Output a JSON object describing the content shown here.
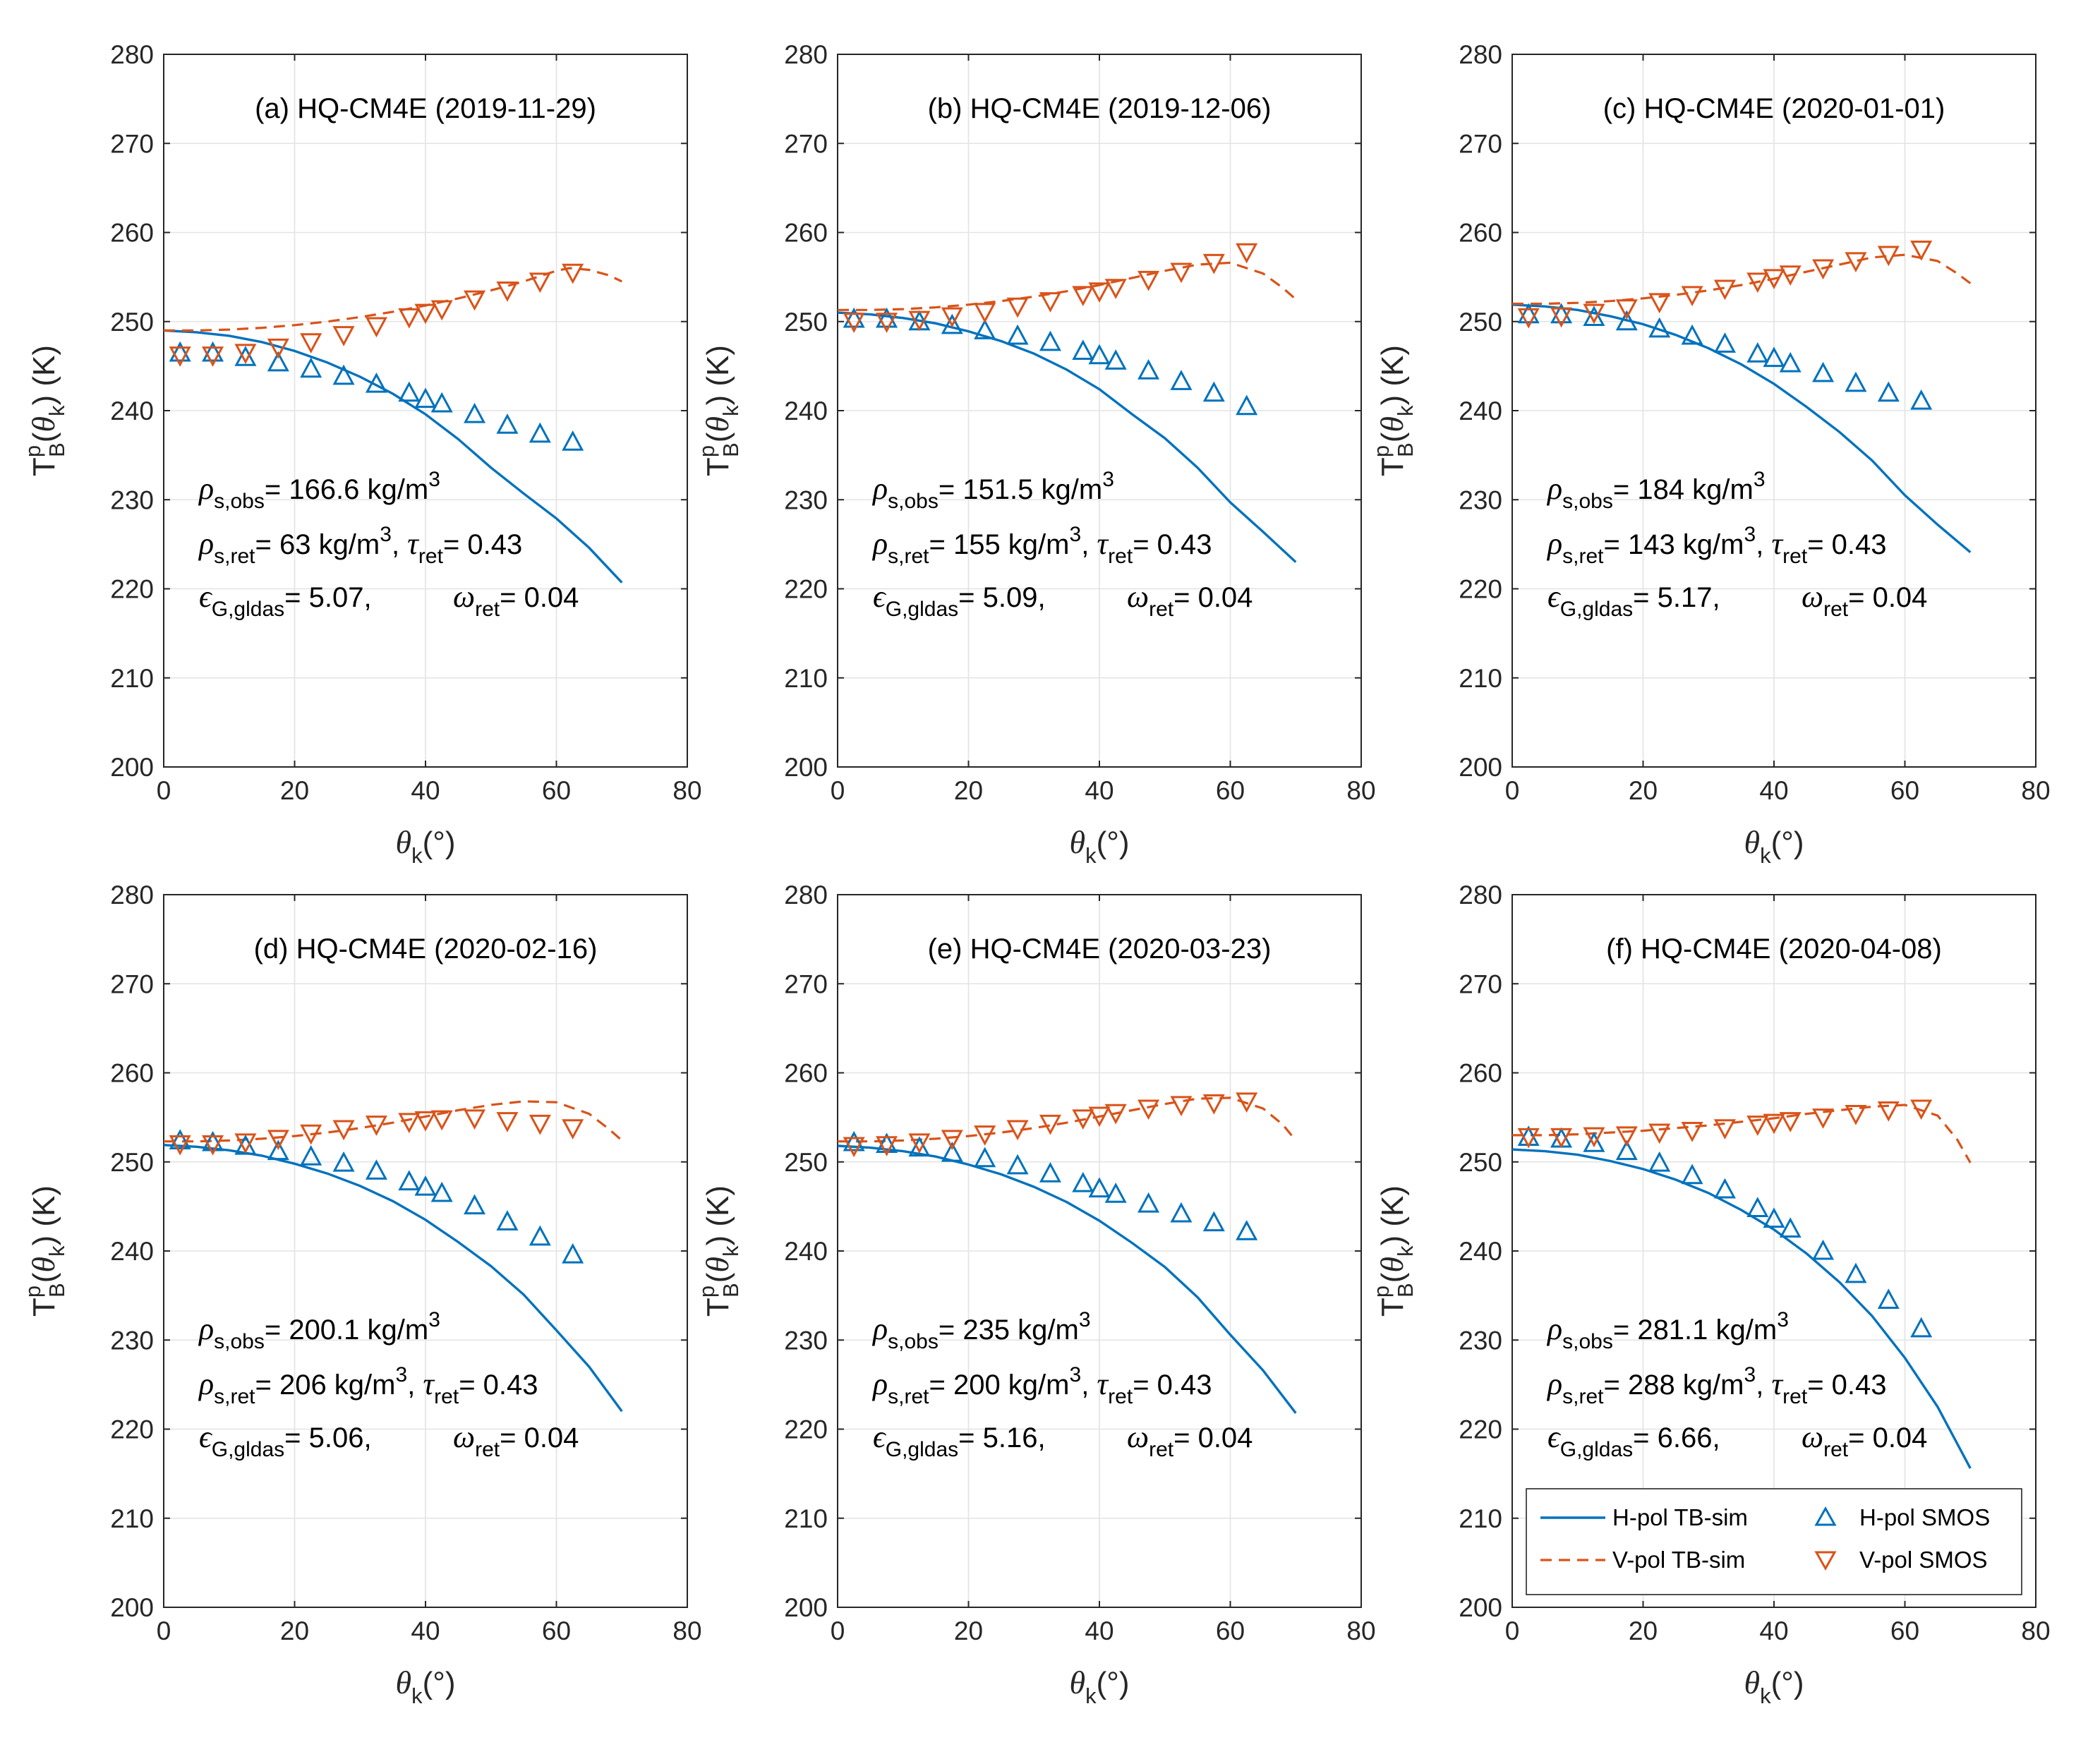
{
  "colors": {
    "h_pol": "#0072BD",
    "v_pol": "#D95319",
    "grid": "#e3e3e3",
    "axis": "#262626"
  },
  "labels": {
    "ylabel_main": "T",
    "ylabel_sup": "p",
    "ylabel_sub": "B",
    "ylabel_open": "(",
    "ylabel_theta": "θ",
    "ylabel_k": "k",
    "ylabel_close": ") (K)",
    "xlabel_theta": "θ",
    "xlabel_sub": "k",
    "xlabel_unit": "(°)",
    "rho": "ρ",
    "tau": "τ",
    "omega": "ω",
    "epsilon": "ϵ",
    "sub_obs": "s,obs",
    "sub_ret": "s,ret",
    "sub_tau": "ret",
    "sub_omega": "ret",
    "sub_eps": "G,gldas",
    "unit": " kg/m",
    "unit_sup": "3",
    "tau_val": "= 0.43",
    "omega_val": "= 0.04",
    "comma": ","
  },
  "legend": {
    "h_sim": "H-pol TB-sim",
    "v_sim": "V-pol TB-sim",
    "h_smos": "H-pol SMOS",
    "v_smos": "V-pol SMOS"
  },
  "chart_data": [
    {
      "type": "line",
      "title": "(a) HQ-CM4E  (2019-11-29)",
      "xlabel": "θk(°)",
      "ylabel": "TpB(θk) (K)",
      "xlim": [
        0,
        80
      ],
      "ylim": [
        200,
        280
      ],
      "xticks": [
        "0",
        "20",
        "40",
        "60",
        "80"
      ],
      "yticks": [
        "200",
        "210",
        "220",
        "230",
        "240",
        "250",
        "260",
        "270",
        "280"
      ],
      "rho_obs": "= 166.6",
      "rho_ret": "= 63",
      "eps": "= 5.07",
      "series": [
        {
          "name": "H-pol TB-sim",
          "x": [
            0,
            5,
            10,
            15,
            20,
            25,
            30,
            35,
            40,
            45,
            50,
            55,
            60,
            65,
            70
          ],
          "values": [
            249.0,
            248.8,
            248.4,
            247.7,
            246.7,
            245.4,
            243.8,
            241.9,
            239.6,
            236.8,
            233.6,
            230.7,
            227.9,
            224.6,
            220.7
          ]
        },
        {
          "name": "V-pol TB-sim",
          "x": [
            0,
            5,
            10,
            15,
            20,
            25,
            30,
            35,
            40,
            45,
            50,
            55,
            60,
            62,
            65,
            68,
            70
          ],
          "values": [
            249.0,
            249.0,
            249.1,
            249.3,
            249.6,
            250.0,
            250.5,
            251.1,
            251.8,
            252.6,
            253.5,
            254.5,
            255.7,
            256.0,
            255.8,
            255.2,
            254.5
          ]
        },
        {
          "name": "H-pol SMOS",
          "x": [
            2.5,
            7.5,
            12.5,
            17.5,
            22.5,
            27.5,
            32.5,
            37.5,
            40,
            42.5,
            47.5,
            52.5,
            57.5,
            62.5
          ],
          "values": [
            246.5,
            246.5,
            246.0,
            245.4,
            244.7,
            243.9,
            243.0,
            242.0,
            241.3,
            240.8,
            239.6,
            238.4,
            237.4,
            236.5
          ]
        },
        {
          "name": "V-pol SMOS",
          "x": [
            2.5,
            7.5,
            12.5,
            17.5,
            22.5,
            27.5,
            32.5,
            37.5,
            40,
            42.5,
            47.5,
            52.5,
            57.5,
            62.5
          ],
          "values": [
            246.2,
            246.2,
            246.5,
            247.1,
            247.7,
            248.5,
            249.5,
            250.5,
            251.0,
            251.4,
            252.5,
            253.5,
            254.5,
            255.5
          ]
        }
      ]
    },
    {
      "type": "line",
      "title": "(b) HQ-CM4E  (2019-12-06)",
      "xlabel": "θk(°)",
      "ylabel": "TpB(θk) (K)",
      "xlim": [
        0,
        80
      ],
      "ylim": [
        200,
        280
      ],
      "xticks": [
        "0",
        "20",
        "40",
        "60",
        "80"
      ],
      "yticks": [
        "200",
        "210",
        "220",
        "230",
        "240",
        "250",
        "260",
        "270",
        "280"
      ],
      "rho_obs": "= 151.5",
      "rho_ret": "= 155",
      "eps": "= 5.09",
      "series": [
        {
          "name": "H-pol TB-sim",
          "x": [
            0,
            5,
            10,
            15,
            20,
            25,
            30,
            35,
            40,
            45,
            50,
            55,
            60,
            65,
            70
          ],
          "values": [
            251.0,
            250.8,
            250.4,
            249.8,
            248.9,
            247.8,
            246.4,
            244.6,
            242.4,
            239.6,
            236.9,
            233.6,
            229.7,
            226.4,
            223.0
          ]
        },
        {
          "name": "V-pol TB-sim",
          "x": [
            0,
            5,
            10,
            15,
            20,
            25,
            30,
            35,
            40,
            45,
            50,
            55,
            60,
            65,
            68,
            70
          ],
          "values": [
            251.3,
            251.3,
            251.4,
            251.6,
            251.9,
            252.3,
            252.8,
            253.4,
            254.1,
            254.9,
            255.7,
            256.4,
            256.6,
            255.4,
            253.8,
            252.5
          ]
        },
        {
          "name": "H-pol SMOS",
          "x": [
            2.5,
            7.5,
            12.5,
            17.5,
            22.5,
            27.5,
            32.5,
            37.5,
            40,
            42.5,
            47.5,
            52.5,
            57.5,
            62.5
          ],
          "values": [
            250.3,
            250.3,
            250.0,
            249.6,
            249.0,
            248.4,
            247.7,
            246.7,
            246.2,
            245.6,
            244.5,
            243.3,
            242.0,
            240.5
          ]
        },
        {
          "name": "V-pol SMOS",
          "x": [
            2.5,
            7.5,
            12.5,
            17.5,
            22.5,
            27.5,
            32.5,
            37.5,
            40,
            42.5,
            47.5,
            52.5,
            57.5,
            62.5
          ],
          "values": [
            250.0,
            250.0,
            250.2,
            250.6,
            251.1,
            251.7,
            252.3,
            253.0,
            253.4,
            253.8,
            254.7,
            255.6,
            256.6,
            257.8
          ]
        }
      ]
    },
    {
      "type": "line",
      "title": "(c) HQ-CM4E  (2020-01-01)",
      "xlabel": "θk(°)",
      "ylabel": "TpB(θk) (K)",
      "xlim": [
        0,
        80
      ],
      "ylim": [
        200,
        280
      ],
      "xticks": [
        "0",
        "20",
        "40",
        "60",
        "80"
      ],
      "yticks": [
        "200",
        "210",
        "220",
        "230",
        "240",
        "250",
        "260",
        "270",
        "280"
      ],
      "rho_obs": "= 184",
      "rho_ret": "= 143",
      "eps": "= 5.17",
      "series": [
        {
          "name": "H-pol TB-sim",
          "x": [
            0,
            5,
            10,
            15,
            20,
            25,
            30,
            35,
            40,
            45,
            50,
            55,
            60,
            65,
            70
          ],
          "values": [
            251.9,
            251.7,
            251.3,
            250.6,
            249.7,
            248.5,
            247.0,
            245.2,
            243.0,
            240.4,
            237.6,
            234.4,
            230.5,
            227.2,
            224.1
          ]
        },
        {
          "name": "V-pol TB-sim",
          "x": [
            0,
            5,
            10,
            15,
            20,
            25,
            30,
            35,
            40,
            45,
            50,
            55,
            60,
            65,
            68,
            70
          ],
          "values": [
            252.0,
            252.0,
            252.1,
            252.3,
            252.6,
            253.0,
            253.5,
            254.1,
            254.8,
            255.6,
            256.4,
            257.2,
            257.5,
            256.8,
            255.4,
            254.3
          ]
        },
        {
          "name": "H-pol SMOS",
          "x": [
            2.5,
            7.5,
            12.5,
            17.5,
            22.5,
            27.5,
            32.5,
            37.5,
            40,
            42.5,
            47.5,
            52.5,
            57.5,
            62.5
          ],
          "values": [
            250.8,
            250.8,
            250.5,
            250.0,
            249.2,
            248.4,
            247.5,
            246.4,
            245.9,
            245.3,
            244.2,
            243.1,
            242.0,
            241.1
          ]
        },
        {
          "name": "V-pol SMOS",
          "x": [
            2.5,
            7.5,
            12.5,
            17.5,
            22.5,
            27.5,
            32.5,
            37.5,
            40,
            42.5,
            47.5,
            52.5,
            57.5,
            62.5
          ],
          "values": [
            250.5,
            250.6,
            251.0,
            251.5,
            252.2,
            253.0,
            253.7,
            254.5,
            254.9,
            255.3,
            256.0,
            256.8,
            257.5,
            258.1
          ]
        }
      ]
    },
    {
      "type": "line",
      "title": "(d) HQ-CM4E  (2020-02-16)",
      "xlabel": "θk(°)",
      "ylabel": "TpB(θk) (K)",
      "xlim": [
        0,
        80
      ],
      "ylim": [
        200,
        280
      ],
      "xticks": [
        "0",
        "20",
        "40",
        "60",
        "80"
      ],
      "yticks": [
        "200",
        "210",
        "220",
        "230",
        "240",
        "250",
        "260",
        "270",
        "280"
      ],
      "rho_obs": "= 200.1",
      "rho_ret": "= 206",
      "eps": "= 5.06",
      "series": [
        {
          "name": "H-pol TB-sim",
          "x": [
            0,
            5,
            10,
            15,
            20,
            25,
            30,
            35,
            40,
            45,
            50,
            55,
            60,
            65,
            70
          ],
          "values": [
            251.9,
            251.7,
            251.3,
            250.7,
            249.8,
            248.7,
            247.3,
            245.6,
            243.5,
            241.0,
            238.3,
            235.1,
            231.1,
            227.0,
            222.0
          ]
        },
        {
          "name": "V-pol TB-sim",
          "x": [
            0,
            5,
            10,
            15,
            20,
            25,
            30,
            35,
            40,
            45,
            50,
            55,
            60,
            65,
            68,
            70
          ],
          "values": [
            252.3,
            252.3,
            252.4,
            252.6,
            252.9,
            253.3,
            253.8,
            254.4,
            255.1,
            255.8,
            256.4,
            256.8,
            256.7,
            255.4,
            253.7,
            252.4
          ]
        },
        {
          "name": "H-pol SMOS",
          "x": [
            2.5,
            7.5,
            12.5,
            17.5,
            22.5,
            27.5,
            32.5,
            37.5,
            40,
            42.5,
            47.5,
            52.5,
            57.5,
            62.5
          ],
          "values": [
            252.4,
            252.2,
            251.8,
            251.2,
            250.6,
            249.9,
            249.0,
            247.8,
            247.2,
            246.5,
            245.1,
            243.3,
            241.6,
            239.6
          ]
        },
        {
          "name": "V-pol SMOS",
          "x": [
            2.5,
            7.5,
            12.5,
            17.5,
            22.5,
            27.5,
            32.5,
            37.5,
            40,
            42.5,
            47.5,
            52.5,
            57.5,
            62.5
          ],
          "values": [
            252.0,
            252.0,
            252.2,
            252.6,
            253.2,
            253.7,
            254.2,
            254.5,
            254.7,
            254.8,
            254.9,
            254.6,
            254.3,
            253.8
          ]
        }
      ]
    },
    {
      "type": "line",
      "title": "(e) HQ-CM4E  (2020-03-23)",
      "xlabel": "θk(°)",
      "ylabel": "TpB(θk) (K)",
      "xlim": [
        0,
        80
      ],
      "ylim": [
        200,
        280
      ],
      "xticks": [
        "0",
        "20",
        "40",
        "60",
        "80"
      ],
      "yticks": [
        "200",
        "210",
        "220",
        "230",
        "240",
        "250",
        "260",
        "270",
        "280"
      ],
      "rho_obs": "= 235",
      "rho_ret": "= 200",
      "eps": "= 5.16",
      "series": [
        {
          "name": "H-pol TB-sim",
          "x": [
            0,
            5,
            10,
            15,
            20,
            25,
            30,
            35,
            40,
            45,
            50,
            55,
            60,
            65,
            70
          ],
          "values": [
            251.8,
            251.6,
            251.2,
            250.6,
            249.7,
            248.6,
            247.2,
            245.5,
            243.4,
            240.9,
            238.2,
            234.8,
            230.6,
            226.6,
            221.8
          ]
        },
        {
          "name": "V-pol TB-sim",
          "x": [
            0,
            5,
            10,
            15,
            20,
            25,
            30,
            35,
            40,
            45,
            50,
            55,
            60,
            65,
            68,
            70
          ],
          "values": [
            252.3,
            252.3,
            252.4,
            252.6,
            252.9,
            253.3,
            253.8,
            254.4,
            255.1,
            255.8,
            256.5,
            257.1,
            257.2,
            256.0,
            254.2,
            252.4
          ]
        },
        {
          "name": "H-pol SMOS",
          "x": [
            2.5,
            7.5,
            12.5,
            17.5,
            22.5,
            27.5,
            32.5,
            37.5,
            40,
            42.5,
            47.5,
            52.5,
            57.5,
            62.5
          ],
          "values": [
            252.2,
            252.0,
            251.6,
            251.0,
            250.4,
            249.6,
            248.7,
            247.6,
            247.0,
            246.4,
            245.3,
            244.2,
            243.2,
            242.2
          ]
        },
        {
          "name": "V-pol SMOS",
          "x": [
            2.5,
            7.5,
            12.5,
            17.5,
            22.5,
            27.5,
            32.5,
            37.5,
            40,
            42.5,
            47.5,
            52.5,
            57.5,
            62.5
          ],
          "values": [
            251.8,
            251.9,
            252.2,
            252.6,
            253.1,
            253.7,
            254.3,
            254.9,
            255.2,
            255.5,
            256.0,
            256.4,
            256.6,
            256.8
          ]
        }
      ]
    },
    {
      "type": "line",
      "title": "(f) HQ-CM4E  (2020-04-08)",
      "xlabel": "θk(°)",
      "ylabel": "TpB(θk) (K)",
      "xlim": [
        0,
        80
      ],
      "ylim": [
        200,
        280
      ],
      "xticks": [
        "0",
        "20",
        "40",
        "60",
        "80"
      ],
      "yticks": [
        "200",
        "210",
        "220",
        "230",
        "240",
        "250",
        "260",
        "270",
        "280"
      ],
      "rho_obs": "= 281.1",
      "rho_ret": "= 288",
      "eps": "= 6.66",
      "legend_position": "bottom",
      "series": [
        {
          "name": "H-pol TB-sim",
          "x": [
            0,
            5,
            10,
            15,
            20,
            25,
            30,
            35,
            40,
            45,
            50,
            55,
            60,
            65,
            70
          ],
          "values": [
            251.4,
            251.2,
            250.8,
            250.1,
            249.2,
            248.0,
            246.5,
            244.6,
            242.4,
            239.7,
            236.5,
            232.7,
            228.0,
            222.5,
            215.6
          ]
        },
        {
          "name": "V-pol TB-sim",
          "x": [
            0,
            5,
            10,
            15,
            20,
            25,
            30,
            35,
            40,
            45,
            50,
            55,
            60,
            65,
            68,
            70
          ],
          "values": [
            253.0,
            253.0,
            253.1,
            253.3,
            253.5,
            253.8,
            254.1,
            254.5,
            254.9,
            255.4,
            255.8,
            256.2,
            256.4,
            255.2,
            252.5,
            249.9
          ]
        },
        {
          "name": "H-pol SMOS",
          "x": [
            2.5,
            7.5,
            12.5,
            17.5,
            22.5,
            27.5,
            32.5,
            37.5,
            40,
            42.5,
            47.5,
            52.5,
            57.5,
            62.5
          ],
          "values": [
            252.8,
            252.6,
            252.1,
            251.2,
            249.9,
            248.5,
            246.9,
            244.8,
            243.6,
            242.5,
            240.0,
            237.4,
            234.5,
            231.3
          ]
        },
        {
          "name": "V-pol SMOS",
          "x": [
            2.5,
            7.5,
            12.5,
            17.5,
            22.5,
            27.5,
            32.5,
            37.5,
            40,
            42.5,
            47.5,
            52.5,
            57.5,
            62.5
          ],
          "values": [
            252.8,
            252.8,
            252.9,
            253.0,
            253.3,
            253.5,
            253.8,
            254.2,
            254.4,
            254.6,
            255.0,
            255.4,
            255.8,
            256.0
          ]
        }
      ]
    }
  ]
}
